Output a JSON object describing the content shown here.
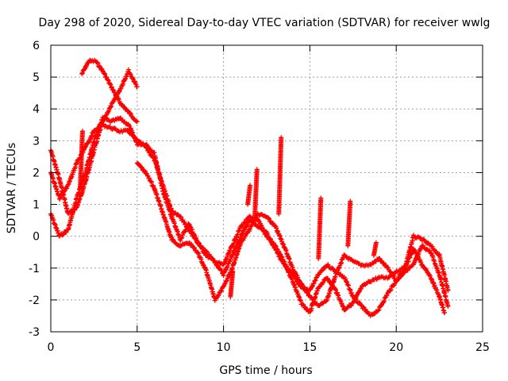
{
  "chart_data": {
    "type": "scatter",
    "title": "Day 298 of 2020, Sidereal Day-to-day VTEC variation (SDTVAR) for receiver wwlg",
    "xlabel": "GPS time / hours",
    "ylabel": "SDTVAR / TECUs",
    "xlim": [
      0,
      25
    ],
    "ylim": [
      -3,
      6
    ],
    "x_ticks": [
      0,
      5,
      10,
      15,
      20,
      25
    ],
    "y_ticks": [
      -3,
      -2,
      -1,
      0,
      1,
      2,
      3,
      4,
      5,
      6
    ],
    "grid": true,
    "marker": "+",
    "series_color": "#ff0000",
    "series": [
      {
        "name": "track-1",
        "points": [
          [
            0,
            0.7
          ],
          [
            0.5,
            0
          ],
          [
            1,
            0.2
          ],
          [
            1.5,
            1.2
          ],
          [
            2,
            2
          ],
          [
            2.5,
            3
          ],
          [
            3,
            3.7
          ],
          [
            3.5,
            3.6
          ],
          [
            4,
            3.7
          ],
          [
            4.5,
            3.5
          ],
          [
            5,
            2.9
          ],
          [
            5.5,
            2.9
          ],
          [
            6,
            2.6
          ],
          [
            6.5,
            1.4
          ],
          [
            7,
            0.6
          ],
          [
            7.5,
            -0.1
          ],
          [
            8,
            0.4
          ],
          [
            8.5,
            -0.2
          ],
          [
            9,
            -0.6
          ],
          [
            9.5,
            -0.8
          ],
          [
            10,
            -0.9
          ],
          [
            10.5,
            -0.3
          ],
          [
            11,
            0.3
          ],
          [
            11.5,
            0.6
          ],
          [
            12,
            0.5
          ],
          [
            12.5,
            0
          ],
          [
            13,
            -0.3
          ],
          [
            13.5,
            -0.8
          ],
          [
            14,
            -1.4
          ],
          [
            14.5,
            -2.1
          ],
          [
            15,
            -2.4
          ],
          [
            15.5,
            -1.6
          ],
          [
            16,
            -1.3
          ],
          [
            16.5,
            -1.7
          ],
          [
            17,
            -2.3
          ],
          [
            17.5,
            -2.1
          ],
          [
            18,
            -1.6
          ],
          [
            18.5,
            -1.4
          ],
          [
            19,
            -1.3
          ],
          [
            19.5,
            -1.3
          ],
          [
            20,
            -1.1
          ],
          [
            20.5,
            -1.0
          ],
          [
            21,
            -0.4
          ],
          [
            21.5,
            -0.9
          ],
          [
            22,
            -1.3
          ],
          [
            22.5,
            -1.9
          ],
          [
            22.8,
            -2.4
          ]
        ]
      },
      {
        "name": "track-2",
        "points": [
          [
            0,
            2.0
          ],
          [
            0.5,
            1.2
          ],
          [
            1,
            1.6
          ],
          [
            1.5,
            2.3
          ],
          [
            2,
            2.8
          ],
          [
            2.5,
            3.3
          ],
          [
            3,
            3.5
          ],
          [
            3.5,
            3.4
          ],
          [
            4,
            3.3
          ],
          [
            4.5,
            3.3
          ],
          [
            5,
            3.0
          ],
          [
            5.5,
            2.8
          ],
          [
            6,
            2.4
          ],
          [
            6.5,
            1.6
          ],
          [
            7,
            0.8
          ],
          [
            7.5,
            0.6
          ],
          [
            8,
            0.2
          ],
          [
            8.5,
            -0.2
          ],
          [
            9,
            -0.5
          ],
          [
            9.5,
            -0.8
          ],
          [
            10,
            -1.2
          ],
          [
            10.5,
            -0.6
          ],
          [
            11,
            0
          ],
          [
            11.5,
            0.5
          ],
          [
            12,
            0.3
          ],
          [
            12.5,
            0.1
          ],
          [
            13,
            -0.4
          ],
          [
            13.5,
            -0.9
          ],
          [
            14,
            -1.2
          ],
          [
            14.5,
            -1.6
          ],
          [
            15,
            -1.7
          ],
          [
            15.5,
            -1.2
          ],
          [
            16,
            -0.9
          ],
          [
            16.5,
            -1.1
          ],
          [
            17,
            -1.3
          ],
          [
            17.5,
            -1.9
          ],
          [
            18,
            -2.2
          ],
          [
            18.5,
            -2.5
          ],
          [
            19,
            -2.3
          ],
          [
            19.5,
            -1.8
          ],
          [
            20,
            -1.4
          ],
          [
            20.5,
            -1.1
          ],
          [
            21,
            -0.9
          ],
          [
            21.5,
            -0.3
          ],
          [
            22,
            -0.5
          ],
          [
            22.5,
            -1.2
          ],
          [
            23,
            -2.2
          ]
        ]
      },
      {
        "name": "track-3",
        "points": [
          [
            0,
            2.7
          ],
          [
            0.5,
            1.8
          ],
          [
            1,
            0.7
          ],
          [
            1.5,
            0.9
          ],
          [
            2,
            1.7
          ],
          [
            2.5,
            2.7
          ],
          [
            3,
            3.6
          ],
          [
            3.5,
            4.1
          ],
          [
            4,
            4.6
          ],
          [
            4.5,
            5.2
          ],
          [
            5,
            4.7
          ]
        ]
      },
      {
        "name": "track-4",
        "points": [
          [
            1.8,
            5.1
          ],
          [
            2.2,
            5.5
          ],
          [
            2.6,
            5.5
          ],
          [
            3,
            5.2
          ],
          [
            3.5,
            4.7
          ],
          [
            4,
            4.2
          ],
          [
            4.5,
            3.9
          ],
          [
            5,
            3.6
          ]
        ]
      },
      {
        "name": "track-5",
        "points": [
          [
            5,
            2.3
          ],
          [
            5.5,
            2.0
          ],
          [
            6,
            1.5
          ],
          [
            6.5,
            0.7
          ],
          [
            7,
            -0.1
          ],
          [
            7.5,
            -0.3
          ],
          [
            8,
            -0.2
          ],
          [
            8.5,
            -0.5
          ],
          [
            9,
            -1.1
          ],
          [
            9.5,
            -2.0
          ],
          [
            10,
            -1.6
          ],
          [
            10.5,
            -1.0
          ],
          [
            11,
            -0.2
          ],
          [
            11.5,
            0.2
          ],
          [
            12,
            0.7
          ],
          [
            12.5,
            0.6
          ],
          [
            13,
            0.3
          ],
          [
            13.5,
            -0.3
          ],
          [
            14,
            -1.0
          ],
          [
            14.5,
            -1.5
          ],
          [
            15,
            -1.9
          ],
          [
            15.5,
            -2.2
          ],
          [
            16,
            -2.0
          ],
          [
            16.5,
            -1.2
          ],
          [
            17,
            -0.6
          ],
          [
            17.5,
            -0.8
          ],
          [
            18,
            -0.9
          ],
          [
            18.5,
            -0.9
          ],
          [
            19,
            -0.7
          ],
          [
            19.5,
            -1.0
          ],
          [
            20,
            -1.4
          ],
          [
            20.5,
            -1.0
          ],
          [
            21,
            0
          ],
          [
            21.5,
            -0.1
          ],
          [
            22,
            -0.3
          ],
          [
            22.5,
            -0.6
          ],
          [
            23,
            -1.7
          ]
        ]
      }
    ],
    "spikes": [
      {
        "x": 1.7,
        "y0": 1.5,
        "y1": 3.3
      },
      {
        "x": 11.4,
        "y0": 1.0,
        "y1": 1.6
      },
      {
        "x": 11.8,
        "y0": 0.5,
        "y1": 2.1
      },
      {
        "x": 13.2,
        "y0": 0.7,
        "y1": 3.1
      },
      {
        "x": 15.5,
        "y0": -0.7,
        "y1": 1.2
      },
      {
        "x": 17.2,
        "y0": -0.3,
        "y1": 1.1
      },
      {
        "x": 18.7,
        "y0": -0.6,
        "y1": -0.2
      },
      {
        "x": 10.4,
        "y0": -1.9,
        "y1": -1.1
      }
    ]
  }
}
